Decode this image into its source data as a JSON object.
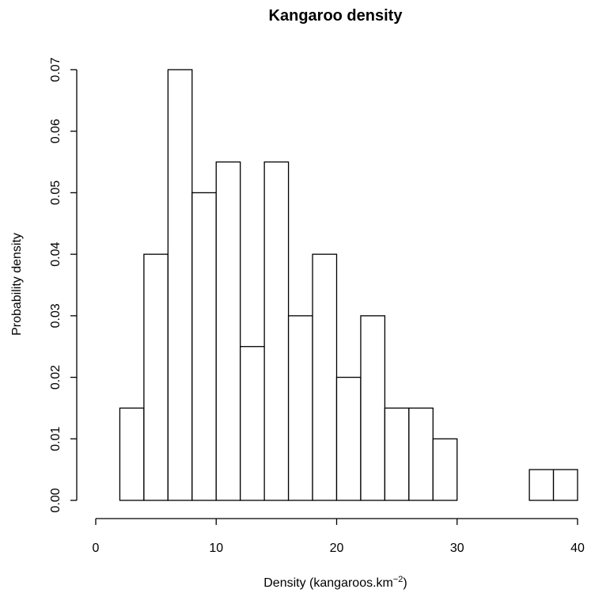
{
  "chart_data": {
    "type": "bar",
    "title": "Kangaroo density",
    "xlabel": {
      "prefix": "Density (kangaroos.km",
      "superscript": "−2",
      "suffix": ")"
    },
    "ylabel": "Probability density",
    "bin_edges": [
      2,
      4,
      6,
      8,
      10,
      12,
      14,
      16,
      18,
      20,
      22,
      24,
      26,
      28,
      30,
      32,
      34,
      36,
      38,
      40
    ],
    "values": [
      0.015,
      0.04,
      0.07,
      0.05,
      0.055,
      0.025,
      0.055,
      0.03,
      0.04,
      0.02,
      0.03,
      0.015,
      0.015,
      0.01,
      0,
      0,
      0,
      0.005,
      0.005
    ],
    "xlim": [
      0,
      40
    ],
    "ylim": [
      0,
      0.07
    ],
    "x_ticks": [
      "0",
      "10",
      "20",
      "30",
      "40"
    ],
    "y_ticks": [
      "0.00",
      "0.01",
      "0.02",
      "0.03",
      "0.04",
      "0.05",
      "0.06",
      "0.07"
    ],
    "grid": false,
    "legend": "none"
  }
}
